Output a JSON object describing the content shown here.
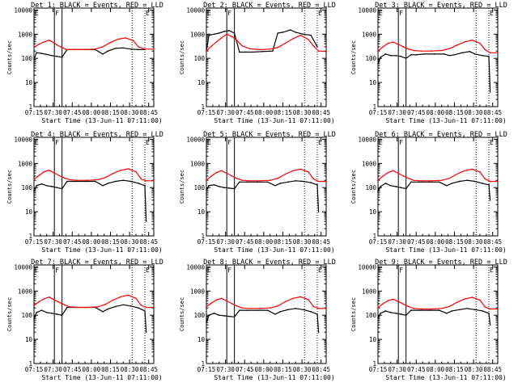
{
  "figure": {
    "type": "rhessi_detector_lightcurves",
    "grid": false,
    "legend_placement": "title"
  },
  "panels_common": {
    "ylabel": "Counts/sec",
    "xlabel": "Start Time (13-Jun-11 07:11:00)",
    "x_ticks": [
      "07:15",
      "07:30",
      "07:45",
      "08:00",
      "08:15",
      "08:30",
      "08:45"
    ],
    "y_ticks": [
      "1",
      "10",
      "100",
      "1000",
      "10000"
    ],
    "y_log": true,
    "ylim": [
      1,
      12000
    ],
    "xlim_min": [
      4,
      98
    ],
    "marker_labels": [
      "E",
      "F",
      "E"
    ],
    "marker_minutes": [
      4,
      20,
      26,
      81,
      91
    ],
    "colors": {
      "events": "#000000",
      "lld": "#ff0000"
    }
  },
  "chart_data": [
    {
      "title": "Det 1: BLACK = Events, RED = LLD",
      "type": "line",
      "xlabel": "Start Time (13-Jun-11 07:11:00)",
      "ylabel": "Counts/sec",
      "x_ticks": [
        "07:15",
        "07:30",
        "07:45",
        "08:00",
        "08:15",
        "08:30",
        "08:45"
      ],
      "y_ticks": [
        "1",
        "10",
        "100",
        "1000",
        "10000"
      ],
      "y_log": true,
      "series": [
        {
          "name": "Events",
          "color": "#000000",
          "x": [
            4,
            6,
            10,
            14,
            18,
            22,
            26,
            30,
            36,
            44,
            52,
            58,
            62,
            68,
            74,
            80,
            86,
            91
          ],
          "y": [
            90,
            170,
            160,
            145,
            130,
            120,
            110,
            230,
            230,
            230,
            230,
            150,
            200,
            260,
            270,
            240,
            230,
            230
          ]
        },
        {
          "name": "LLD",
          "color": "#ff0000",
          "x": [
            4,
            8,
            12,
            16,
            20,
            22,
            26,
            30,
            36,
            44,
            52,
            58,
            64,
            70,
            76,
            82,
            86,
            91,
            98
          ],
          "y": [
            290,
            380,
            480,
            560,
            430,
            360,
            280,
            230,
            230,
            230,
            240,
            300,
            450,
            620,
            700,
            540,
            300,
            240,
            240
          ]
        }
      ]
    },
    {
      "title": "Det 2: BLACK = Events, RED = LLD",
      "type": "line",
      "xlabel": "Start Time (13-Jun-11 07:11:00)",
      "ylabel": "Counts/sec",
      "x_ticks": [
        "07:15",
        "07:30",
        "07:45",
        "08:00",
        "08:15",
        "08:30",
        "08:45"
      ],
      "y_ticks": [
        "1",
        "10",
        "100",
        "1000",
        "10000"
      ],
      "y_log": true,
      "series": [
        {
          "name": "Events",
          "color": "#000000",
          "x": [
            4,
            6,
            10,
            14,
            18,
            22,
            26,
            30,
            34,
            40,
            48,
            56,
            60,
            64,
            70,
            74,
            80,
            86,
            91
          ],
          "y": [
            200,
            900,
            1000,
            1100,
            1300,
            1400,
            1100,
            180,
            180,
            180,
            190,
            200,
            1100,
            1200,
            1500,
            1200,
            1000,
            900,
            300
          ]
        },
        {
          "name": "LLD",
          "color": "#ff0000",
          "x": [
            4,
            8,
            12,
            16,
            20,
            24,
            28,
            32,
            38,
            46,
            54,
            60,
            66,
            72,
            78,
            84,
            88,
            92,
            98
          ],
          "y": [
            200,
            320,
            480,
            700,
            1000,
            800,
            550,
            330,
            250,
            230,
            240,
            280,
            420,
            650,
            900,
            600,
            330,
            200,
            190
          ]
        }
      ]
    },
    {
      "title": "Det 3: BLACK = Events, RED = LLD",
      "type": "line",
      "xlabel": "Start Time (13-Jun-11 07:11:00)",
      "ylabel": "Counts/sec",
      "x_ticks": [
        "07:15",
        "07:30",
        "07:45",
        "08:00",
        "08:15",
        "08:30",
        "08:45"
      ],
      "y_ticks": [
        "1",
        "10",
        "100",
        "1000",
        "10000"
      ],
      "y_log": true,
      "series": [
        {
          "name": "Events",
          "color": "#000000",
          "x": [
            4,
            6,
            10,
            14,
            18,
            22,
            26,
            30,
            34,
            40,
            48,
            56,
            60,
            64,
            70,
            76,
            80,
            86,
            91,
            92
          ],
          "y": [
            60,
            110,
            150,
            130,
            130,
            120,
            100,
            140,
            140,
            150,
            150,
            150,
            130,
            140,
            170,
            190,
            150,
            130,
            120,
            4
          ]
        },
        {
          "name": "LLD",
          "color": "#ff0000",
          "x": [
            4,
            8,
            12,
            16,
            20,
            24,
            28,
            32,
            38,
            46,
            54,
            60,
            66,
            72,
            78,
            84,
            88,
            92,
            98
          ],
          "y": [
            200,
            300,
            420,
            470,
            380,
            300,
            240,
            210,
            200,
            200,
            210,
            250,
            350,
            480,
            560,
            420,
            230,
            170,
            170
          ]
        }
      ]
    },
    {
      "title": "Det 4: BLACK = Events, RED = LLD",
      "type": "line",
      "xlabel": "Start Time (13-Jun-11 07:11:00)",
      "ylabel": "Counts/sec",
      "x_ticks": [
        "07:15",
        "07:30",
        "07:45",
        "08:00",
        "08:15",
        "08:30",
        "08:45"
      ],
      "y_ticks": [
        "1",
        "10",
        "100",
        "1000",
        "10000"
      ],
      "y_log": true,
      "series": [
        {
          "name": "Events",
          "color": "#000000",
          "x": [
            4,
            6,
            10,
            14,
            18,
            22,
            26,
            30,
            36,
            44,
            52,
            58,
            62,
            68,
            74,
            80,
            86,
            91,
            92
          ],
          "y": [
            70,
            120,
            140,
            120,
            110,
            100,
            90,
            180,
            180,
            180,
            180,
            120,
            150,
            180,
            200,
            180,
            150,
            120,
            4
          ]
        },
        {
          "name": "LLD",
          "color": "#ff0000",
          "x": [
            4,
            8,
            12,
            16,
            20,
            24,
            28,
            32,
            38,
            46,
            54,
            60,
            66,
            72,
            78,
            84,
            88,
            92,
            98
          ],
          "y": [
            220,
            320,
            450,
            520,
            400,
            310,
            250,
            210,
            200,
            200,
            210,
            260,
            380,
            520,
            600,
            450,
            230,
            190,
            190
          ]
        }
      ]
    },
    {
      "title": "Det 5: BLACK = Events, RED = LLD",
      "type": "line",
      "xlabel": "Start Time (13-Jun-11 07:11:00)",
      "ylabel": "Counts/sec",
      "x_ticks": [
        "07:15",
        "07:30",
        "07:45",
        "08:00",
        "08:15",
        "08:30",
        "08:45"
      ],
      "y_ticks": [
        "1",
        "10",
        "100",
        "1000",
        "10000"
      ],
      "y_log": true,
      "series": [
        {
          "name": "Events",
          "color": "#000000",
          "x": [
            4,
            6,
            10,
            14,
            18,
            22,
            26,
            30,
            36,
            44,
            52,
            58,
            62,
            68,
            74,
            80,
            86,
            91,
            92
          ],
          "y": [
            80,
            120,
            130,
            110,
            100,
            95,
            90,
            170,
            170,
            170,
            170,
            120,
            150,
            170,
            190,
            180,
            160,
            130,
            10
          ]
        },
        {
          "name": "LLD",
          "color": "#ff0000",
          "x": [
            4,
            8,
            12,
            16,
            20,
            24,
            28,
            32,
            38,
            46,
            54,
            60,
            66,
            72,
            78,
            84,
            88,
            92,
            98
          ],
          "y": [
            200,
            300,
            420,
            500,
            390,
            300,
            240,
            200,
            190,
            190,
            200,
            240,
            360,
            500,
            580,
            440,
            230,
            180,
            180
          ]
        }
      ]
    },
    {
      "title": "Det 6: BLACK = Events, RED = LLD",
      "type": "line",
      "xlabel": "Start Time (13-Jun-11 07:11:00)",
      "ylabel": "Counts/sec",
      "x_ticks": [
        "07:15",
        "07:30",
        "07:45",
        "08:00",
        "08:15",
        "08:30",
        "08:45"
      ],
      "y_ticks": [
        "1",
        "10",
        "100",
        "1000",
        "10000"
      ],
      "y_log": true,
      "series": [
        {
          "name": "Events",
          "color": "#000000",
          "x": [
            4,
            6,
            10,
            14,
            18,
            22,
            26,
            30,
            36,
            44,
            52,
            58,
            62,
            68,
            74,
            80,
            86,
            91,
            92
          ],
          "y": [
            70,
            110,
            150,
            120,
            110,
            100,
            90,
            170,
            170,
            170,
            170,
            120,
            150,
            180,
            200,
            180,
            150,
            130,
            30
          ]
        },
        {
          "name": "LLD",
          "color": "#ff0000",
          "x": [
            4,
            8,
            12,
            16,
            20,
            24,
            28,
            32,
            38,
            46,
            54,
            60,
            66,
            72,
            78,
            84,
            88,
            92,
            98
          ],
          "y": [
            200,
            300,
            420,
            500,
            390,
            300,
            240,
            200,
            190,
            190,
            200,
            240,
            360,
            500,
            580,
            440,
            230,
            180,
            180
          ]
        }
      ]
    },
    {
      "title": "Det 7: BLACK = Events, RED = LLD",
      "type": "line",
      "xlabel": "Start Time (13-Jun-11 07:11:00)",
      "ylabel": "Counts/sec",
      "x_ticks": [
        "07:15",
        "07:30",
        "07:45",
        "08:00",
        "08:15",
        "08:30",
        "08:45"
      ],
      "y_ticks": [
        "1",
        "10",
        "100",
        "1000",
        "10000"
      ],
      "y_log": true,
      "series": [
        {
          "name": "Events",
          "color": "#000000",
          "x": [
            4,
            6,
            10,
            14,
            18,
            22,
            26,
            30,
            36,
            44,
            52,
            58,
            62,
            68,
            74,
            80,
            86,
            91,
            92
          ],
          "y": [
            70,
            130,
            160,
            130,
            120,
            110,
            100,
            210,
            210,
            210,
            210,
            140,
            180,
            230,
            270,
            240,
            200,
            150,
            20
          ]
        },
        {
          "name": "LLD",
          "color": "#ff0000",
          "x": [
            4,
            8,
            12,
            16,
            20,
            24,
            28,
            32,
            38,
            46,
            54,
            60,
            66,
            72,
            78,
            84,
            88,
            92,
            98
          ],
          "y": [
            250,
            360,
            480,
            560,
            430,
            340,
            270,
            220,
            210,
            210,
            220,
            280,
            420,
            580,
            680,
            500,
            260,
            210,
            210
          ]
        }
      ]
    },
    {
      "title": "Det 8: BLACK = Events, RED = LLD",
      "type": "line",
      "xlabel": "Start Time (13-Jun-11 07:11:00)",
      "ylabel": "Counts/sec",
      "x_ticks": [
        "07:15",
        "07:30",
        "07:45",
        "08:00",
        "08:15",
        "08:30",
        "08:45"
      ],
      "y_ticks": [
        "1",
        "10",
        "100",
        "1000",
        "10000"
      ],
      "y_log": true,
      "series": [
        {
          "name": "Events",
          "color": "#000000",
          "x": [
            4,
            6,
            10,
            14,
            18,
            22,
            26,
            30,
            36,
            44,
            52,
            58,
            62,
            68,
            74,
            80,
            86,
            91,
            92
          ],
          "y": [
            50,
            100,
            120,
            100,
            95,
            90,
            85,
            160,
            160,
            160,
            160,
            110,
            140,
            170,
            190,
            170,
            140,
            110,
            20
          ]
        },
        {
          "name": "LLD",
          "color": "#ff0000",
          "x": [
            4,
            8,
            12,
            16,
            20,
            24,
            28,
            32,
            38,
            46,
            54,
            60,
            66,
            72,
            78,
            84,
            88,
            92,
            98
          ],
          "y": [
            220,
            320,
            430,
            500,
            390,
            300,
            240,
            200,
            190,
            190,
            200,
            240,
            360,
            500,
            580,
            440,
            230,
            190,
            190
          ]
        }
      ]
    },
    {
      "title": "Det 9: BLACK = Events, RED = LLD",
      "type": "line",
      "xlabel": "Start Time (13-Jun-11 07:11:00)",
      "ylabel": "Counts/sec",
      "x_ticks": [
        "07:15",
        "07:30",
        "07:45",
        "08:00",
        "08:15",
        "08:30",
        "08:45"
      ],
      "y_ticks": [
        "1",
        "10",
        "100",
        "1000",
        "10000"
      ],
      "y_log": true,
      "series": [
        {
          "name": "Events",
          "color": "#000000",
          "x": [
            4,
            6,
            10,
            14,
            18,
            22,
            26,
            30,
            36,
            44,
            52,
            58,
            62,
            68,
            74,
            80,
            86,
            91,
            92
          ],
          "y": [
            80,
            120,
            150,
            130,
            120,
            110,
            100,
            160,
            160,
            160,
            160,
            120,
            150,
            170,
            190,
            170,
            150,
            120,
            40
          ]
        },
        {
          "name": "LLD",
          "color": "#ff0000",
          "x": [
            4,
            8,
            12,
            16,
            20,
            24,
            28,
            32,
            38,
            46,
            54,
            60,
            66,
            72,
            78,
            84,
            88,
            92,
            98
          ],
          "y": [
            200,
            300,
            400,
            460,
            370,
            290,
            230,
            190,
            180,
            180,
            190,
            230,
            340,
            470,
            550,
            420,
            220,
            180,
            180
          ]
        }
      ]
    }
  ]
}
